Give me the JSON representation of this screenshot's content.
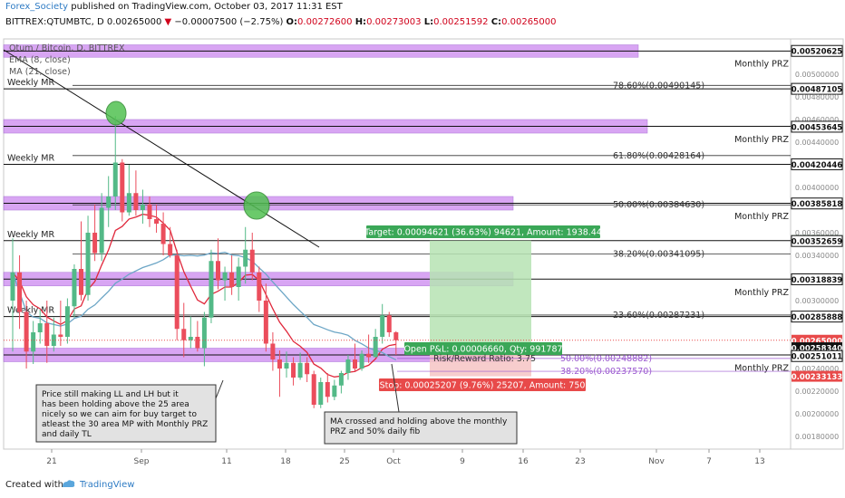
{
  "header": {
    "author": "Forex_Society",
    "published": "published on TradingView.com, October 03, 2017 11:31 EST",
    "symbol": "BITTREX:QTUMBTC, D",
    "last": "0.00265000",
    "change": "−0.00007500 (−2.75%)",
    "ohlc_o_label": "O:",
    "ohlc_o": "0.00272600",
    "ohlc_h_label": "H:",
    "ohlc_h": "0.00273003",
    "ohlc_l_label": "L:",
    "ohlc_l": "0.00251592",
    "ohlc_c_label": "C:",
    "ohlc_c": "0.00265000"
  },
  "footer": {
    "created_with": "Created with",
    "brand": "TradingView"
  },
  "legend": [
    "Qtum / Bitcoin, D, BITTREX",
    "EMA (8, close)",
    "MA (21, close)"
  ],
  "colors": {
    "up": "#53b987",
    "down": "#eb4d5c",
    "ema": "#e0283c",
    "ma": "#6ca6c6",
    "prz_fill": "#cc88f0",
    "target_fill": "#b6e3b3",
    "stop_fill": "#f6c4c4",
    "target_label": "#3aa757",
    "stop_label": "#e84a4a",
    "circle": "#52c152"
  },
  "chart_data": {
    "type": "candlestick",
    "symbol": "QTUMBTC",
    "timeframe": "D",
    "ylim": [
      0.0017,
      0.0053
    ],
    "x_ticks": [
      "21",
      "Sep",
      "11",
      "18",
      "25",
      "Oct",
      "9",
      "16",
      "23",
      "Nov",
      "7",
      "13"
    ],
    "y_ticks": [
      "0.00520625",
      "0.00500000",
      "0.00487105",
      "0.00480000",
      "0.00460000",
      "0.00453645",
      "0.00440000",
      "0.00420446",
      "0.00400000",
      "0.00385818",
      "0.00360000",
      "0.00352961",
      "0.00352659",
      "0.00340000",
      "0.00318839",
      "0.00300000",
      "0.00285888",
      "0.00265000",
      "0.00258340",
      "0.00251011",
      "0.00240000",
      "0.00233133",
      "0.00220000",
      "0.00200000",
      "0.00180000"
    ],
    "candles": [
      {
        "o": 0.003,
        "h": 0.00355,
        "l": 0.00255,
        "c": 0.00325
      },
      {
        "o": 0.00325,
        "h": 0.0034,
        "l": 0.00275,
        "c": 0.0029
      },
      {
        "o": 0.0029,
        "h": 0.003,
        "l": 0.0024,
        "c": 0.00255
      },
      {
        "o": 0.00255,
        "h": 0.00282,
        "l": 0.00244,
        "c": 0.00272
      },
      {
        "o": 0.00272,
        "h": 0.00292,
        "l": 0.00262,
        "c": 0.0028
      },
      {
        "o": 0.0028,
        "h": 0.003,
        "l": 0.00245,
        "c": 0.0026
      },
      {
        "o": 0.0026,
        "h": 0.00285,
        "l": 0.00255,
        "c": 0.0027
      },
      {
        "o": 0.0027,
        "h": 0.003,
        "l": 0.0026,
        "c": 0.00268
      },
      {
        "o": 0.00268,
        "h": 0.00302,
        "l": 0.00262,
        "c": 0.00295
      },
      {
        "o": 0.00295,
        "h": 0.00332,
        "l": 0.00285,
        "c": 0.00328
      },
      {
        "o": 0.00328,
        "h": 0.0037,
        "l": 0.003,
        "c": 0.00305
      },
      {
        "o": 0.00305,
        "h": 0.00375,
        "l": 0.003,
        "c": 0.0036
      },
      {
        "o": 0.0036,
        "h": 0.00385,
        "l": 0.00335,
        "c": 0.00342
      },
      {
        "o": 0.00342,
        "h": 0.00395,
        "l": 0.00335,
        "c": 0.00382
      },
      {
        "o": 0.00382,
        "h": 0.0041,
        "l": 0.00365,
        "c": 0.00392
      },
      {
        "o": 0.00392,
        "h": 0.00463,
        "l": 0.0038,
        "c": 0.00422
      },
      {
        "o": 0.00422,
        "h": 0.00425,
        "l": 0.0037,
        "c": 0.00378
      },
      {
        "o": 0.00378,
        "h": 0.0042,
        "l": 0.00375,
        "c": 0.00395
      },
      {
        "o": 0.00395,
        "h": 0.00415,
        "l": 0.00375,
        "c": 0.0038
      },
      {
        "o": 0.0038,
        "h": 0.00398,
        "l": 0.00368,
        "c": 0.00385
      },
      {
        "o": 0.00385,
        "h": 0.00392,
        "l": 0.00365,
        "c": 0.00372
      },
      {
        "o": 0.00372,
        "h": 0.00385,
        "l": 0.0036,
        "c": 0.00368
      },
      {
        "o": 0.00368,
        "h": 0.00378,
        "l": 0.0034,
        "c": 0.0035
      },
      {
        "o": 0.0035,
        "h": 0.00365,
        "l": 0.00338,
        "c": 0.0034
      },
      {
        "o": 0.0034,
        "h": 0.00345,
        "l": 0.00265,
        "c": 0.00275
      },
      {
        "o": 0.00275,
        "h": 0.00298,
        "l": 0.0025,
        "c": 0.00265
      },
      {
        "o": 0.00265,
        "h": 0.00286,
        "l": 0.00258,
        "c": 0.00268
      },
      {
        "o": 0.00268,
        "h": 0.00282,
        "l": 0.00255,
        "c": 0.00258
      },
      {
        "o": 0.00258,
        "h": 0.0029,
        "l": 0.00242,
        "c": 0.00285
      },
      {
        "o": 0.00285,
        "h": 0.00345,
        "l": 0.0028,
        "c": 0.00335
      },
      {
        "o": 0.00335,
        "h": 0.00355,
        "l": 0.0031,
        "c": 0.00318
      },
      {
        "o": 0.00318,
        "h": 0.0033,
        "l": 0.003,
        "c": 0.00325
      },
      {
        "o": 0.00325,
        "h": 0.0034,
        "l": 0.00305,
        "c": 0.00312
      },
      {
        "o": 0.00312,
        "h": 0.00338,
        "l": 0.003,
        "c": 0.0033
      },
      {
        "o": 0.0033,
        "h": 0.00365,
        "l": 0.00315,
        "c": 0.00345
      },
      {
        "o": 0.00345,
        "h": 0.0036,
        "l": 0.00318,
        "c": 0.00325
      },
      {
        "o": 0.00325,
        "h": 0.0033,
        "l": 0.0029,
        "c": 0.003
      },
      {
        "o": 0.003,
        "h": 0.00315,
        "l": 0.00255,
        "c": 0.00262
      },
      {
        "o": 0.00262,
        "h": 0.00272,
        "l": 0.00238,
        "c": 0.00248
      },
      {
        "o": 0.00248,
        "h": 0.00256,
        "l": 0.00215,
        "c": 0.0024
      },
      {
        "o": 0.0024,
        "h": 0.00255,
        "l": 0.00232,
        "c": 0.00245
      },
      {
        "o": 0.00245,
        "h": 0.0025,
        "l": 0.00225,
        "c": 0.00232
      },
      {
        "o": 0.00232,
        "h": 0.00254,
        "l": 0.0023,
        "c": 0.00245
      },
      {
        "o": 0.00245,
        "h": 0.0025,
        "l": 0.00228,
        "c": 0.00235
      },
      {
        "o": 0.00235,
        "h": 0.00238,
        "l": 0.00205,
        "c": 0.00208
      },
      {
        "o": 0.00208,
        "h": 0.00232,
        "l": 0.00205,
        "c": 0.00228
      },
      {
        "o": 0.00228,
        "h": 0.00236,
        "l": 0.0021,
        "c": 0.00215
      },
      {
        "o": 0.00215,
        "h": 0.0023,
        "l": 0.00212,
        "c": 0.00225
      },
      {
        "o": 0.00225,
        "h": 0.00238,
        "l": 0.00218,
        "c": 0.00236
      },
      {
        "o": 0.00236,
        "h": 0.00252,
        "l": 0.0023,
        "c": 0.00248
      },
      {
        "o": 0.00248,
        "h": 0.00262,
        "l": 0.00238,
        "c": 0.0024
      },
      {
        "o": 0.0024,
        "h": 0.00256,
        "l": 0.00238,
        "c": 0.00253
      },
      {
        "o": 0.00253,
        "h": 0.0027,
        "l": 0.00245,
        "c": 0.0025
      },
      {
        "o": 0.0025,
        "h": 0.00275,
        "l": 0.0025,
        "c": 0.00268
      },
      {
        "o": 0.00268,
        "h": 0.00297,
        "l": 0.00262,
        "c": 0.00287
      },
      {
        "o": 0.00287,
        "h": 0.0029,
        "l": 0.00268,
        "c": 0.00272
      },
      {
        "o": 0.00272,
        "h": 0.00273,
        "l": 0.00252,
        "c": 0.00265
      }
    ],
    "prz_zones": [
      {
        "y1": 0.00515,
        "y2": 0.00526,
        "label": "Monthly PRZ",
        "price": "0.00520625"
      },
      {
        "y1": 0.00448,
        "y2": 0.0046,
        "label": "Monthly PRZ",
        "price": "0.00453645"
      },
      {
        "y1": 0.0038,
        "y2": 0.00392,
        "label": "Monthly PRZ",
        "price": "0.00385818"
      },
      {
        "y1": 0.00313,
        "y2": 0.00325,
        "label": "Monthly PRZ",
        "price": "0.00318839"
      },
      {
        "y1": 0.00246,
        "y2": 0.00258,
        "label": "Monthly PRZ",
        "price": "0.00251011"
      }
    ],
    "weekly_mr": [
      {
        "price": 0.00487105,
        "label": "Weekly MR"
      },
      {
        "price": 0.00420446,
        "label": "Weekly MR"
      },
      {
        "price": 0.00352961,
        "label": "Weekly MR"
      },
      {
        "price": 0.00285888,
        "label": "Weekly MR"
      }
    ],
    "fib_levels": [
      {
        "price": 0.00490145,
        "label": "78.60%(0.00490145)"
      },
      {
        "price": 0.00428164,
        "label": "61.80%(0.00428164)"
      },
      {
        "price": 0.0038463,
        "label": "50.00%(0.00384630)"
      },
      {
        "price": 0.00341095,
        "label": "38.20%(0.00341095)"
      },
      {
        "price": 0.00287231,
        "label": "23.60%(0.00287231)"
      }
    ],
    "small_fib": [
      {
        "price": 0.00248882,
        "label": "50.00%(0.00248882)"
      },
      {
        "price": 0.0023757,
        "label": "38.20%(0.00237570)"
      }
    ],
    "position": {
      "entry": 0.0025834,
      "target": 0.0035296,
      "stop": 0.0023313,
      "target_label": "Target: 0.00094621 (36.63%) 94621, Amount: 1938.44",
      "pnl_label": "Open P&L: 0.00006660, Qty: 991787",
      "rr_label": "Risk/Reward Ratio: 3.75",
      "stop_label": "Stop: 0.00025207 (9.76%) 25207, Amount: 750"
    },
    "price_tags": [
      {
        "price": 0.00352961,
        "text": "0.00352961",
        "type": "green"
      },
      {
        "price": 0.00265,
        "text": "0.00265000",
        "type": "red"
      },
      {
        "price": 0.0025834,
        "text": "0.00258340",
        "type": "dark"
      },
      {
        "price": 0.00233133,
        "text": "0.00233133",
        "type": "red"
      }
    ],
    "annotations": [
      {
        "id": "note1",
        "text": [
          "Price still making LL and LH but it",
          "has been holding above the 25 area",
          "nicely so we can aim for buy target to",
          "atleast the 30 area MP with Monthly PRZ",
          "and daily TL"
        ]
      },
      {
        "id": "note2",
        "text": [
          "MA crossed and holding above the monthly",
          "PRZ and 50% daily fib"
        ]
      }
    ]
  }
}
